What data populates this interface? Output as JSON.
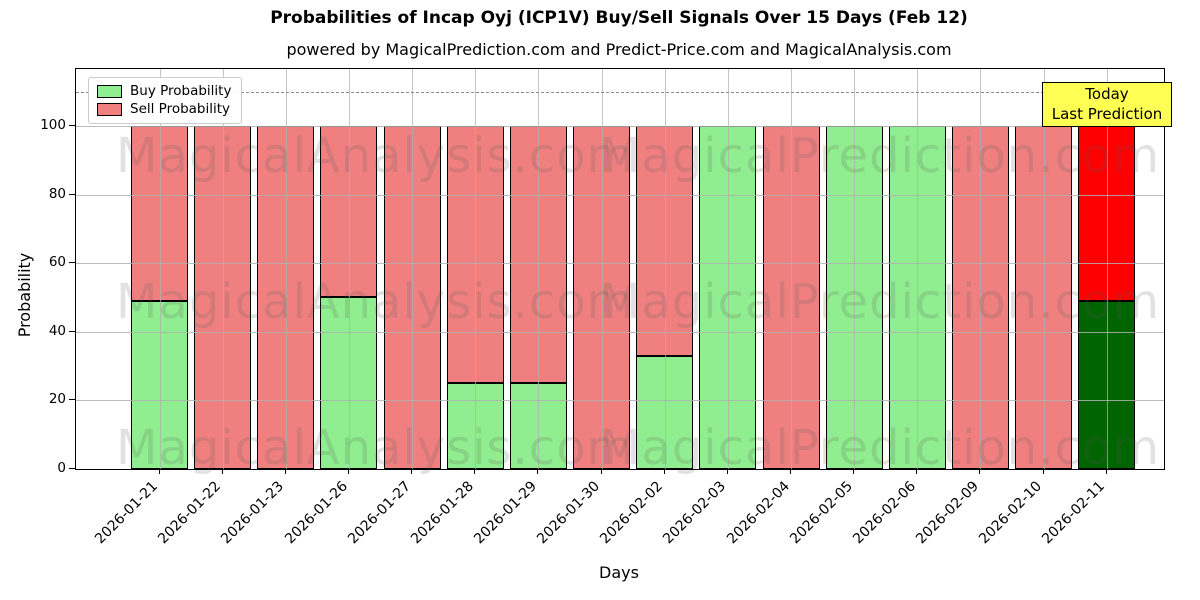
{
  "title": "Probabilities of Incap Oyj (ICP1V) Buy/Sell Signals Over 15 Days (Feb 12)",
  "subtitle": "powered by MagicalPrediction.com and Predict-Price.com and MagicalAnalysis.com",
  "legend": {
    "buy_label": "Buy Probability",
    "sell_label": "Sell Probability",
    "position": "upper left"
  },
  "annotation": {
    "line1": "Today",
    "line2": "Last Prediction",
    "bg_color": "#ffff54",
    "border_color": "#000000"
  },
  "axes": {
    "xlabel": "Days",
    "ylabel": "Probability",
    "yticks": [
      0,
      20,
      40,
      60,
      80,
      100
    ],
    "ylim": [
      0,
      116.6
    ],
    "dashed_line_y": 110,
    "grid": "on"
  },
  "watermarks": {
    "left_text": "MagicalAnalysis.com",
    "right_text": "MagicalPrediction.com"
  },
  "colors": {
    "buy": "#90ee90",
    "sell": "#f08080",
    "today_buy": "#006400",
    "today_sell": "#ff0000",
    "grid": "#b0b0b0",
    "dashed": "#8a8a8a",
    "annotation_bg": "#ffff54",
    "bar_edge": "#000000"
  },
  "chart_data": {
    "type": "bar",
    "stacked": true,
    "title": "Probabilities of Incap Oyj (ICP1V) Buy/Sell Signals Over 15 Days (Feb 12)",
    "xlabel": "Days",
    "ylabel": "Probability",
    "ylim": [
      0,
      116.6
    ],
    "yticks": [
      0,
      20,
      40,
      60,
      80,
      100
    ],
    "dashed_line_y": 110,
    "legend_position": "upper left",
    "categories": [
      "2026-01-21",
      "2026-01-22",
      "2026-01-23",
      "2026-01-26",
      "2026-01-27",
      "2026-01-28",
      "2026-01-29",
      "2026-01-30",
      "2026-02-02",
      "2026-02-03",
      "2026-02-04",
      "2026-02-05",
      "2026-02-06",
      "2026-02-09",
      "2026-02-10",
      "2026-02-11"
    ],
    "series": [
      {
        "name": "Buy Probability",
        "color": "#90ee90",
        "values": [
          49,
          0,
          0,
          50,
          0,
          25,
          25,
          0,
          33,
          100,
          0,
          100,
          100,
          0,
          0,
          49
        ]
      },
      {
        "name": "Sell Probability",
        "color": "#f08080",
        "values": [
          51,
          100,
          100,
          50,
          100,
          75,
          75,
          100,
          67,
          0,
          100,
          0,
          0,
          100,
          100,
          51
        ]
      }
    ],
    "today_index": 15,
    "today_colors": {
      "buy": "#006400",
      "sell": "#ff0000"
    }
  }
}
